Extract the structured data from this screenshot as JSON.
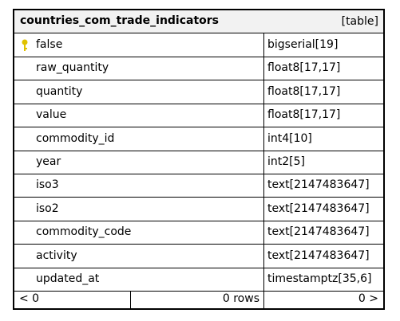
{
  "table": {
    "name": "countries_com_trade_indicators",
    "kind": "[table]",
    "key_color": "#e0c200",
    "columns": [
      {
        "name": "false",
        "type": "bigserial[19]",
        "primary_key": true
      },
      {
        "name": "raw_quantity",
        "type": "float8[17,17]"
      },
      {
        "name": "quantity",
        "type": "float8[17,17]"
      },
      {
        "name": "value",
        "type": "float8[17,17]"
      },
      {
        "name": "commodity_id",
        "type": "int4[10]"
      },
      {
        "name": "year",
        "type": "int2[5]"
      },
      {
        "name": "iso3",
        "type": "text[2147483647]"
      },
      {
        "name": "iso2",
        "type": "text[2147483647]"
      },
      {
        "name": "commodity_code",
        "type": "text[2147483647]"
      },
      {
        "name": "activity",
        "type": "text[2147483647]"
      },
      {
        "name": "updated_at",
        "type": "timestamptz[35,6]"
      }
    ],
    "footer": {
      "prev": "< 0",
      "count": "0 rows",
      "next": "0 >"
    }
  }
}
